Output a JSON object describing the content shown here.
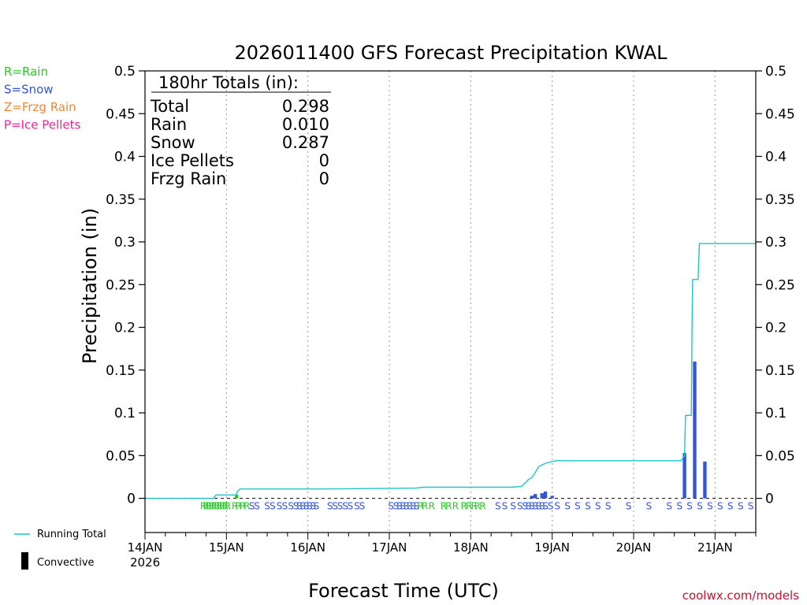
{
  "chart_data": {
    "type": "bar",
    "title": "2026011400 GFS Forecast Precipitation KWAL",
    "xlabel": "Forecast Time (UTC)",
    "ylabel": "Precipitation (in)",
    "ylim": [
      -0.04,
      0.5
    ],
    "yticks": [
      "0",
      "0.05",
      "0.1",
      "0.15",
      "0.2",
      "0.25",
      "0.3",
      "0.35",
      "0.4",
      "0.45",
      "0.5"
    ],
    "ytick_values": [
      0,
      0.05,
      0.1,
      0.15,
      0.2,
      0.25,
      0.3,
      0.35,
      0.4,
      0.45,
      0.5
    ],
    "xlim_hours": [
      0,
      180
    ],
    "x_date_labels": [
      "14JAN",
      "15JAN",
      "16JAN",
      "17JAN",
      "18JAN",
      "19JAN",
      "20JAN",
      "21JAN"
    ],
    "x_date_hours": [
      0,
      24,
      48,
      72,
      96,
      120,
      144,
      168
    ],
    "year_label": "2026",
    "legend_ptypes": [
      {
        "label": "R=Rain",
        "color": "#22cc22"
      },
      {
        "label": "S=Snow",
        "color": "#3355dd"
      },
      {
        "label": "Z=Frzg Rain",
        "color": "#ee8833"
      },
      {
        "label": "P=Ice Pellets",
        "color": "#ee2299"
      }
    ],
    "legend_series": [
      {
        "label": "Running Total",
        "color": "#22c4c4"
      },
      {
        "label": "Convective",
        "color": "#000000"
      }
    ],
    "totals": {
      "header": "180hr Totals (in):",
      "rows": [
        {
          "label": "Total",
          "value": "0.298"
        },
        {
          "label": "Rain",
          "value": "0.010"
        },
        {
          "label": "Snow",
          "value": "0.287"
        },
        {
          "label": "Ice Pellets",
          "value": "0"
        },
        {
          "label": "Frzg Rain",
          "value": "0"
        }
      ]
    },
    "bars": [
      {
        "hour": 27,
        "value": 0.004,
        "color": "#22cc22"
      },
      {
        "hour": 114,
        "value": 0.003,
        "color": "#3355dd"
      },
      {
        "hour": 115,
        "value": 0.005,
        "color": "#3355dd"
      },
      {
        "hour": 117,
        "value": 0.006,
        "color": "#3355dd"
      },
      {
        "hour": 118,
        "value": 0.008,
        "color": "#3355dd"
      },
      {
        "hour": 120,
        "value": 0.003,
        "color": "#3355dd"
      },
      {
        "hour": 159,
        "value": 0.053,
        "color": "#3355dd"
      },
      {
        "hour": 162,
        "value": 0.16,
        "color": "#3355dd"
      },
      {
        "hour": 165,
        "value": 0.043,
        "color": "#3355dd"
      }
    ],
    "running_total": {
      "hours": [
        0,
        20,
        21,
        27,
        27.2,
        28,
        52,
        80,
        82,
        108,
        111,
        112,
        113,
        114,
        115,
        116,
        117,
        118,
        119,
        120,
        121,
        158,
        159,
        159.3,
        161,
        161.2,
        161.4,
        163,
        163.2,
        163.4,
        180
      ],
      "values": [
        0,
        0,
        0.004,
        0.004,
        0.008,
        0.011,
        0.011,
        0.012,
        0.013,
        0.013,
        0.014,
        0.018,
        0.022,
        0.024,
        0.03,
        0.037,
        0.039,
        0.041,
        0.042,
        0.043,
        0.044,
        0.044,
        0.05,
        0.097,
        0.097,
        0.2,
        0.256,
        0.256,
        0.28,
        0.298,
        0.298
      ]
    },
    "ptype_markers": [
      {
        "hour": 17.2,
        "text": "R"
      },
      {
        "hour": 18.0,
        "text": "R"
      },
      {
        "hour": 18.8,
        "text": "R"
      },
      {
        "hour": 19.6,
        "text": "R"
      },
      {
        "hour": 20.4,
        "text": "R"
      },
      {
        "hour": 21.2,
        "text": "R"
      },
      {
        "hour": 22.0,
        "text": "R"
      },
      {
        "hour": 22.8,
        "text": "R"
      },
      {
        "hour": 23.6,
        "text": "R"
      },
      {
        "hour": 24.4,
        "text": "R"
      },
      {
        "hour": 26.5,
        "text": "R"
      },
      {
        "hour": 27.5,
        "text": "R"
      },
      {
        "hour": 28.8,
        "text": "R"
      },
      {
        "hour": 30.0,
        "text": "R"
      },
      {
        "hour": 31.5,
        "text": "S"
      },
      {
        "hour": 33.0,
        "text": "S"
      },
      {
        "hour": 36.0,
        "text": "S"
      },
      {
        "hour": 37.6,
        "text": "S"
      },
      {
        "hour": 39.6,
        "text": "S"
      },
      {
        "hour": 41.2,
        "text": "S"
      },
      {
        "hour": 43.0,
        "text": "S"
      },
      {
        "hour": 44.5,
        "text": "S"
      },
      {
        "hour": 45.5,
        "text": "S"
      },
      {
        "hour": 46.5,
        "text": "S"
      },
      {
        "hour": 47.5,
        "text": "S"
      },
      {
        "hour": 48.5,
        "text": "S"
      },
      {
        "hour": 49.5,
        "text": "S"
      },
      {
        "hour": 50.5,
        "text": "S"
      },
      {
        "hour": 54.5,
        "text": "S"
      },
      {
        "hour": 56.0,
        "text": "S"
      },
      {
        "hour": 57.5,
        "text": "S"
      },
      {
        "hour": 59.0,
        "text": "S"
      },
      {
        "hour": 60.5,
        "text": "S"
      },
      {
        "hour": 62.5,
        "text": "S"
      },
      {
        "hour": 64.0,
        "text": "S"
      },
      {
        "hour": 72.5,
        "text": "S"
      },
      {
        "hour": 74.0,
        "text": "S"
      },
      {
        "hour": 75.0,
        "text": "S"
      },
      {
        "hour": 76.0,
        "text": "S"
      },
      {
        "hour": 77.0,
        "text": "S"
      },
      {
        "hour": 78.0,
        "text": "S"
      },
      {
        "hour": 79.0,
        "text": "S"
      },
      {
        "hour": 80.0,
        "text": "S"
      },
      {
        "hour": 81.2,
        "text": "R"
      },
      {
        "hour": 82.5,
        "text": "R"
      },
      {
        "hour": 84.5,
        "text": "R"
      },
      {
        "hour": 88.0,
        "text": "R"
      },
      {
        "hour": 89.5,
        "text": "R"
      },
      {
        "hour": 91.5,
        "text": "R"
      },
      {
        "hour": 94.0,
        "text": "R"
      },
      {
        "hour": 95.5,
        "text": "R"
      },
      {
        "hour": 97.0,
        "text": "R"
      },
      {
        "hour": 98.0,
        "text": "R"
      },
      {
        "hour": 99.5,
        "text": "R"
      },
      {
        "hour": 104.0,
        "text": "S"
      },
      {
        "hour": 106.0,
        "text": "S"
      },
      {
        "hour": 108.5,
        "text": "S"
      },
      {
        "hour": 110.5,
        "text": "S"
      },
      {
        "hour": 112.0,
        "text": "S"
      },
      {
        "hour": 113.0,
        "text": "S"
      },
      {
        "hour": 114.0,
        "text": "S"
      },
      {
        "hour": 115.0,
        "text": "S"
      },
      {
        "hour": 116.0,
        "text": "S"
      },
      {
        "hour": 117.0,
        "text": "S"
      },
      {
        "hour": 118.0,
        "text": "S"
      },
      {
        "hour": 119.5,
        "text": "S"
      },
      {
        "hour": 121.5,
        "text": "S"
      },
      {
        "hour": 124.5,
        "text": "S"
      },
      {
        "hour": 127.5,
        "text": "S"
      },
      {
        "hour": 130.5,
        "text": "S"
      },
      {
        "hour": 133.5,
        "text": "S"
      },
      {
        "hour": 136.5,
        "text": "S"
      },
      {
        "hour": 142.5,
        "text": "S"
      },
      {
        "hour": 148.5,
        "text": "S"
      },
      {
        "hour": 154.5,
        "text": "S"
      },
      {
        "hour": 157.5,
        "text": "S"
      },
      {
        "hour": 160.5,
        "text": "S"
      },
      {
        "hour": 163.5,
        "text": "S"
      },
      {
        "hour": 166.5,
        "text": "S"
      },
      {
        "hour": 169.5,
        "text": "S"
      },
      {
        "hour": 172.5,
        "text": "S"
      },
      {
        "hour": 175.5,
        "text": "S"
      },
      {
        "hour": 178.5,
        "text": "S"
      }
    ],
    "ptype_colors": {
      "R": "#22cc22",
      "S": "#3355dd"
    },
    "credit": "coolwx.com/models"
  }
}
